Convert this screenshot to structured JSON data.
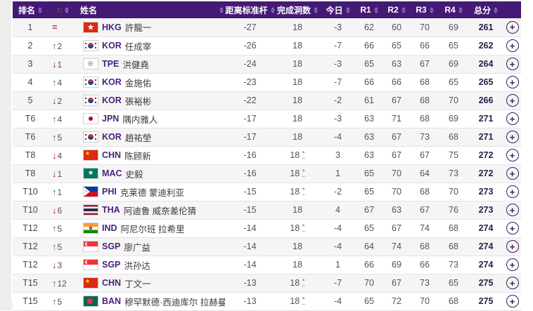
{
  "colors": {
    "header_bg": "#441a74",
    "header_text": "#ffffff",
    "sort_arrow": "#8f6cc4",
    "row_alt_bg": "#f5f5f5",
    "up_arrow": "#1a8a3c",
    "down_arrow": "#a51931",
    "total_text": "#2b1b4d",
    "country_code": "#4b2379",
    "plus_icon": "#3a1a5e"
  },
  "table": {
    "headers": {
      "rank": "排名",
      "name": "姓名",
      "to_par": "距离标准杆",
      "holes": "完成洞数",
      "today": "今日",
      "r1": "R1",
      "r2": "R2",
      "r3": "R3",
      "r4": "R4",
      "total": "总分"
    },
    "icons": {
      "movement_header": "up-down-arrows-icon",
      "sort": "sort-icon",
      "expand": "plus-circle-icon",
      "up": "↑",
      "down": "↓",
      "same": "="
    },
    "rows": [
      {
        "rank": "1",
        "move_dir": "same",
        "move_val": "",
        "flag": "hkg",
        "country": "HKG",
        "player": "許龍一",
        "to_par": "-27",
        "holes": "18",
        "star": false,
        "today": "-3",
        "r1": "62",
        "r2": "60",
        "r3": "70",
        "r4": "69",
        "total": "261"
      },
      {
        "rank": "2",
        "move_dir": "up",
        "move_val": "2",
        "flag": "kor",
        "country": "KOR",
        "player": "任成宰",
        "to_par": "-26",
        "holes": "18",
        "star": false,
        "today": "-7",
        "r1": "66",
        "r2": "65",
        "r3": "66",
        "r4": "65",
        "total": "262"
      },
      {
        "rank": "3",
        "move_dir": "down",
        "move_val": "1",
        "flag": "tpe",
        "country": "TPE",
        "player": "洪健堯",
        "to_par": "-24",
        "holes": "18",
        "star": false,
        "today": "-3",
        "r1": "65",
        "r2": "63",
        "r3": "67",
        "r4": "69",
        "total": "264"
      },
      {
        "rank": "4",
        "move_dir": "up",
        "move_val": "4",
        "flag": "kor",
        "country": "KOR",
        "player": "金施佑",
        "to_par": "-23",
        "holes": "18",
        "star": false,
        "today": "-7",
        "r1": "66",
        "r2": "66",
        "r3": "68",
        "r4": "65",
        "total": "265"
      },
      {
        "rank": "5",
        "move_dir": "down",
        "move_val": "2",
        "flag": "kor",
        "country": "KOR",
        "player": "張裕彬",
        "to_par": "-22",
        "holes": "18",
        "star": false,
        "today": "-2",
        "r1": "61",
        "r2": "67",
        "r3": "68",
        "r4": "70",
        "total": "266"
      },
      {
        "rank": "T6",
        "move_dir": "up",
        "move_val": "4",
        "flag": "jpn",
        "country": "JPN",
        "player": "隅内雅人",
        "to_par": "-17",
        "holes": "18",
        "star": false,
        "today": "-3",
        "r1": "63",
        "r2": "71",
        "r3": "68",
        "r4": "69",
        "total": "271"
      },
      {
        "rank": "T6",
        "move_dir": "up",
        "move_val": "5",
        "flag": "kor",
        "country": "KOR",
        "player": "趙祐塋",
        "to_par": "-17",
        "holes": "18",
        "star": false,
        "today": "-4",
        "r1": "63",
        "r2": "67",
        "r3": "73",
        "r4": "68",
        "total": "271"
      },
      {
        "rank": "T8",
        "move_dir": "down",
        "move_val": "4",
        "flag": "chn",
        "country": "CHN",
        "player": "陈顾新",
        "to_par": "-16",
        "holes": "18",
        "star": true,
        "today": "3",
        "r1": "63",
        "r2": "67",
        "r3": "67",
        "r4": "75",
        "total": "272"
      },
      {
        "rank": "T8",
        "move_dir": "down",
        "move_val": "1",
        "flag": "mac",
        "country": "MAC",
        "player": "史毅",
        "to_par": "-16",
        "holes": "18",
        "star": true,
        "today": "1",
        "r1": "65",
        "r2": "70",
        "r3": "64",
        "r4": "73",
        "total": "272"
      },
      {
        "rank": "T10",
        "move_dir": "up",
        "move_val": "1",
        "flag": "phi",
        "country": "PHI",
        "player": "克莱德 蒙迪利亚",
        "to_par": "-15",
        "holes": "18",
        "star": true,
        "today": "-2",
        "r1": "65",
        "r2": "70",
        "r3": "68",
        "r4": "70",
        "total": "273"
      },
      {
        "rank": "T10",
        "move_dir": "down",
        "move_val": "6",
        "flag": "tha",
        "country": "THA",
        "player": "阿迪鲁 威奈差伦猜",
        "to_par": "-15",
        "holes": "18",
        "star": false,
        "today": "4",
        "r1": "67",
        "r2": "63",
        "r3": "67",
        "r4": "76",
        "total": "273"
      },
      {
        "rank": "T12",
        "move_dir": "up",
        "move_val": "5",
        "flag": "ind",
        "country": "IND",
        "player": "阿尼尔班 拉希里",
        "to_par": "-14",
        "holes": "18",
        "star": true,
        "today": "-4",
        "r1": "65",
        "r2": "67",
        "r3": "74",
        "r4": "68",
        "total": "274"
      },
      {
        "rank": "T12",
        "move_dir": "up",
        "move_val": "5",
        "flag": "sgp",
        "country": "SGP",
        "player": "廖广益",
        "to_par": "-14",
        "holes": "18",
        "star": false,
        "today": "-4",
        "r1": "64",
        "r2": "74",
        "r3": "68",
        "r4": "68",
        "total": "274"
      },
      {
        "rank": "T12",
        "move_dir": "down",
        "move_val": "3",
        "flag": "sgp",
        "country": "SGP",
        "player": "洪孙达",
        "to_par": "-14",
        "holes": "18",
        "star": false,
        "today": "1",
        "r1": "66",
        "r2": "69",
        "r3": "66",
        "r4": "73",
        "total": "274"
      },
      {
        "rank": "T15",
        "move_dir": "up",
        "move_val": "12",
        "flag": "chn",
        "country": "CHN",
        "player": "丁文一",
        "to_par": "-13",
        "holes": "18",
        "star": true,
        "today": "-7",
        "r1": "70",
        "r2": "67",
        "r3": "73",
        "r4": "65",
        "total": "275"
      },
      {
        "rank": "T15",
        "move_dir": "up",
        "move_val": "5",
        "flag": "ban",
        "country": "BAN",
        "player": "穆罕默德·西迪库尔 拉赫曼",
        "to_par": "-13",
        "holes": "18",
        "star": true,
        "today": "-4",
        "r1": "65",
        "r2": "72",
        "r3": "70",
        "r4": "68",
        "total": "275"
      }
    ]
  }
}
